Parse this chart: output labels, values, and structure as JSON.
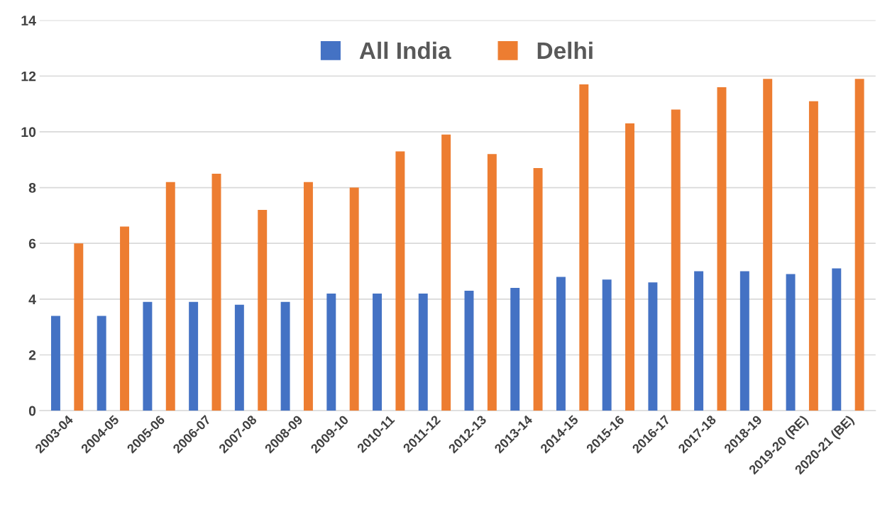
{
  "chart_data": {
    "type": "bar",
    "categories": [
      "2003-04",
      "2004-05",
      "2005-06",
      "2006-07",
      "2007-08",
      "2008-09",
      "2009-10",
      "2010-11",
      "2011-12",
      "2012-13",
      "2013-14",
      "2014-15",
      "2015-16",
      "2016-17",
      "2017-18",
      "2018-19",
      "2019-20 (RE)",
      "2020-21 (BE)"
    ],
    "series": [
      {
        "name": "All India",
        "color": "#4472c4",
        "values": [
          3.4,
          3.4,
          3.9,
          3.9,
          3.8,
          3.9,
          4.2,
          4.2,
          4.2,
          4.3,
          4.4,
          4.8,
          4.7,
          4.6,
          5.0,
          5.0,
          4.9,
          5.1
        ]
      },
      {
        "name": "Delhi",
        "color": "#ed7d31",
        "values": [
          6.0,
          6.6,
          8.2,
          8.5,
          7.2,
          8.2,
          8.0,
          9.3,
          9.9,
          9.2,
          8.7,
          11.7,
          10.3,
          10.8,
          11.6,
          11.9,
          11.1,
          11.9
        ]
      }
    ],
    "ylim": [
      0,
      14
    ],
    "yticks": [
      0,
      2,
      4,
      6,
      8,
      10,
      12,
      14
    ],
    "grid": "y",
    "legend": "top"
  }
}
